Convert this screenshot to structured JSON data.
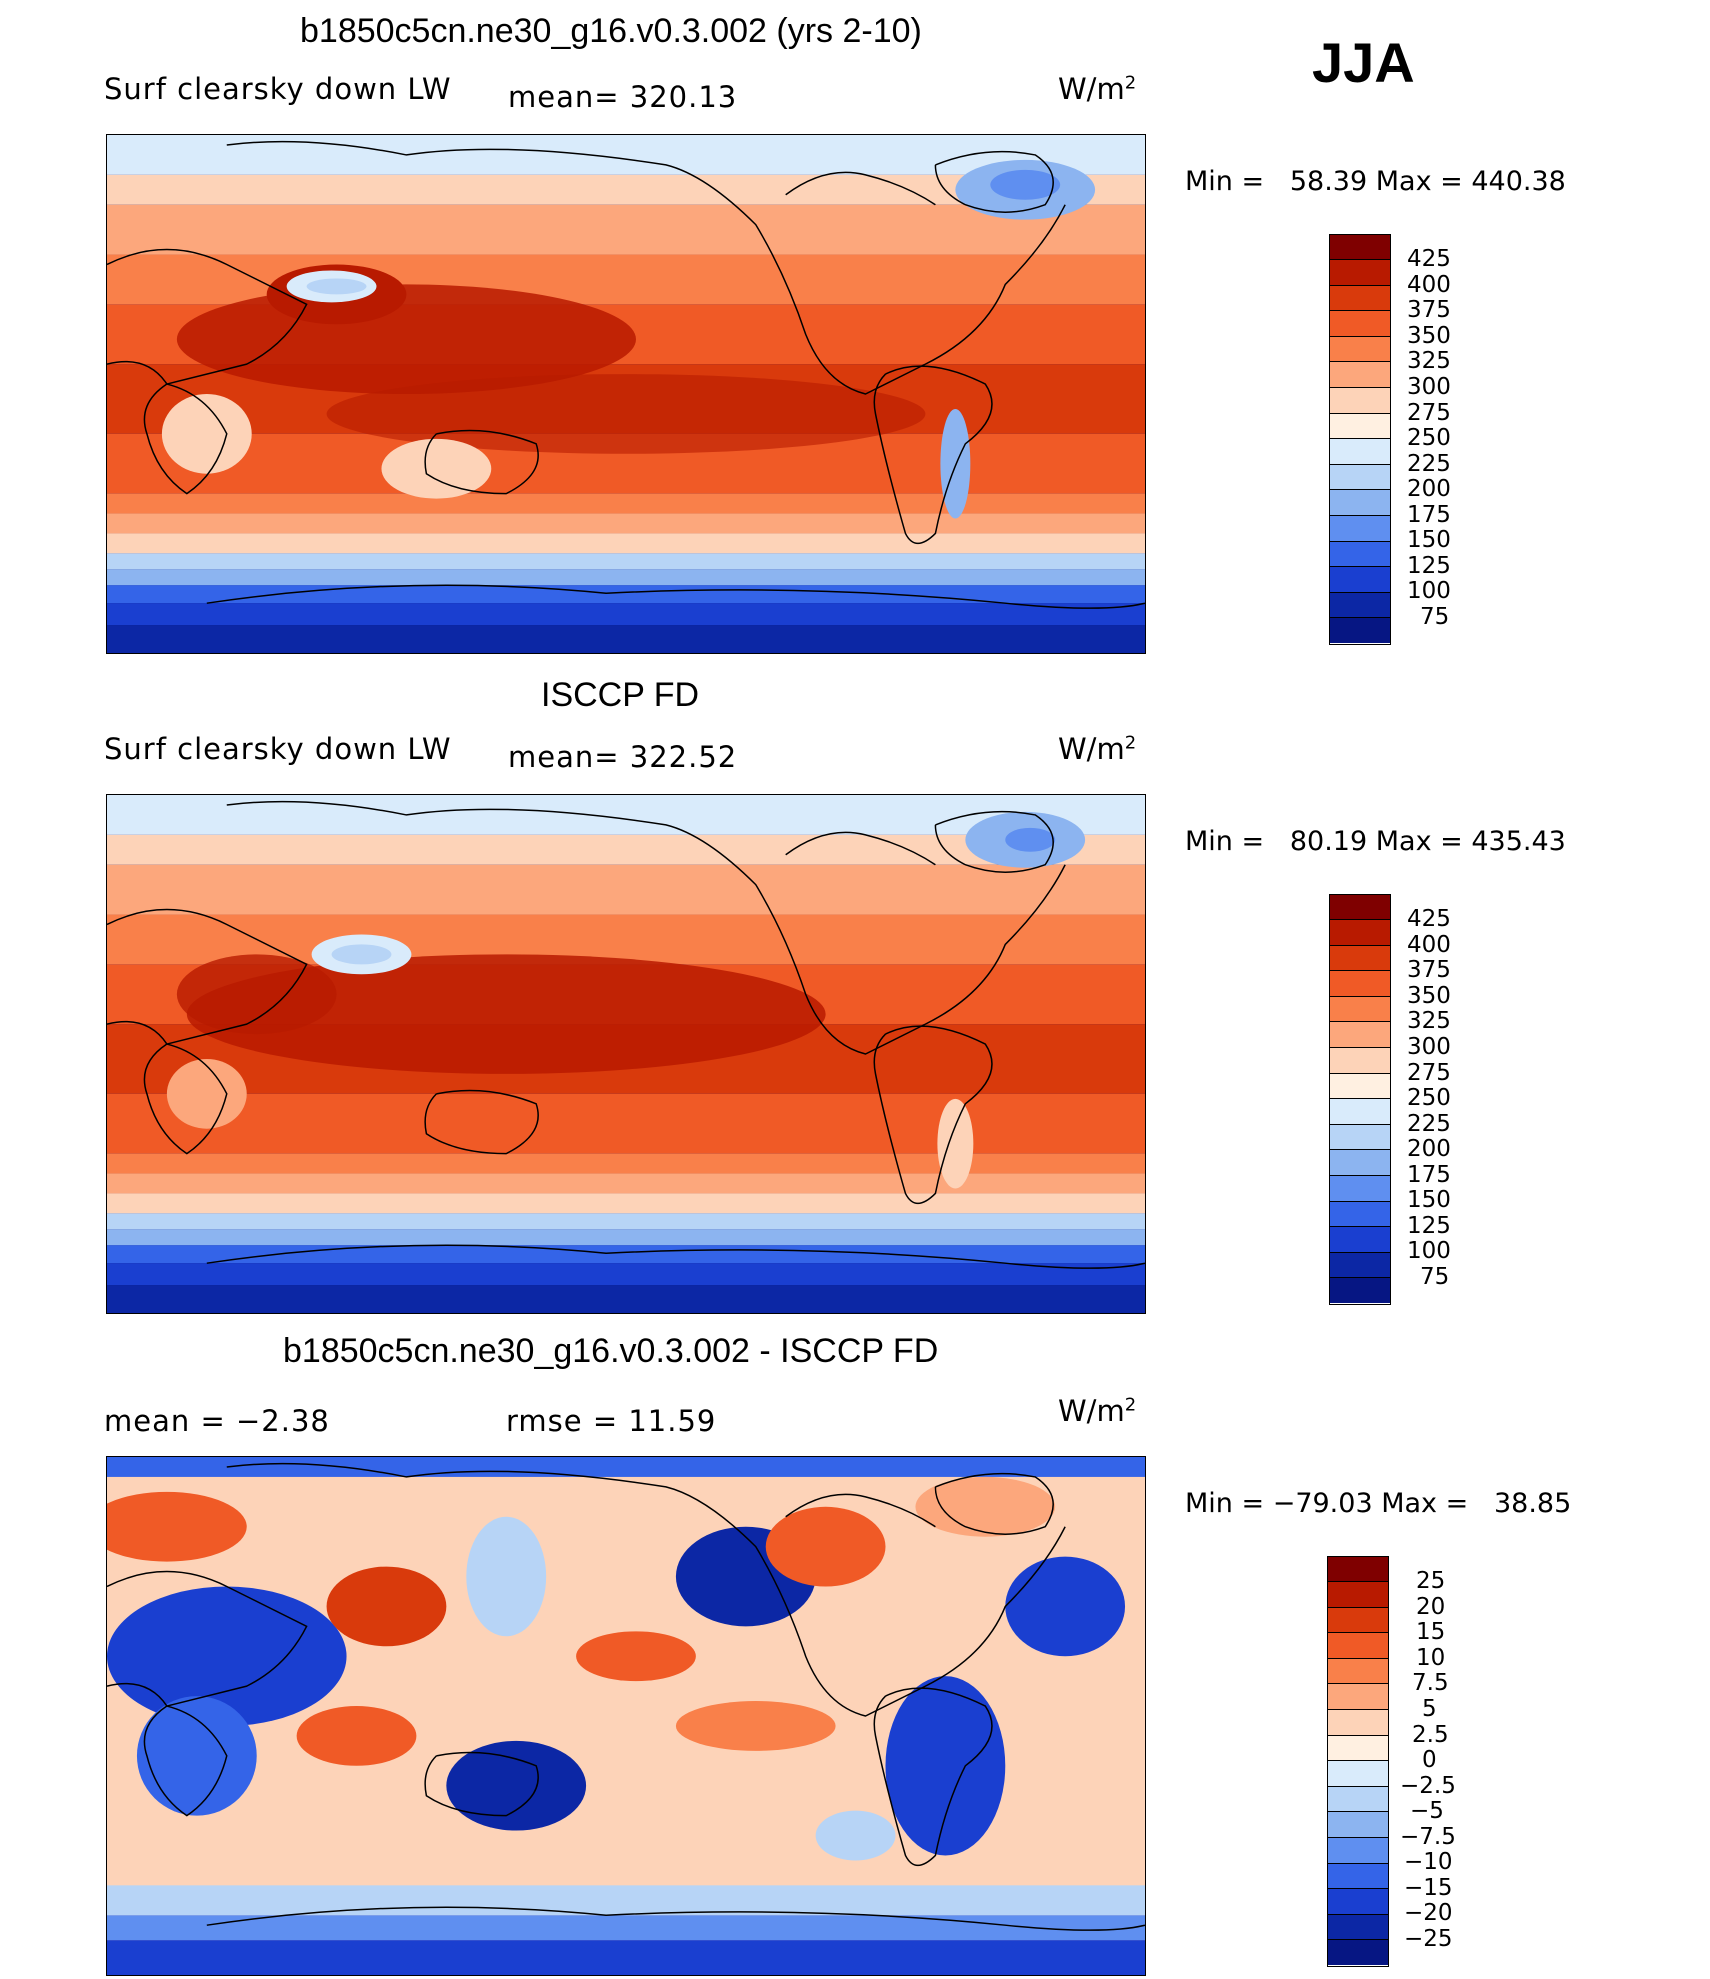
{
  "season": "JJA",
  "units_base": "W/m",
  "units_exp": "2",
  "panels": [
    {
      "id": "model",
      "title": "b1850c5cn.ne30_g16.v0.3.002 (yrs 2-10)",
      "variable": "Surf clearsky down LW",
      "stat1": "mean=  320.13",
      "stat2": "",
      "minmax": "Min =   58.39 Max = 440.38",
      "levels": [
        "425",
        "400",
        "375",
        "350",
        "325",
        "300",
        "275",
        "250",
        "225",
        "200",
        "175",
        "150",
        "125",
        "100",
        "75"
      ]
    },
    {
      "id": "obs",
      "title": "ISCCP FD",
      "variable": "Surf clearsky down LW",
      "stat1": "mean=  322.52",
      "stat2": "",
      "minmax": "Min =   80.19 Max = 435.43",
      "levels": [
        "425",
        "400",
        "375",
        "350",
        "325",
        "300",
        "275",
        "250",
        "225",
        "200",
        "175",
        "150",
        "125",
        "100",
        "75"
      ]
    },
    {
      "id": "diff",
      "title": "b1850c5cn.ne30_g16.v0.3.002 - ISCCP FD",
      "variable": "mean =   −2.38",
      "stat1": "rmse =   11.59",
      "stat2": "",
      "minmax": "Min = −79.03 Max =   38.85",
      "levels": [
        "25",
        "20",
        "15",
        "10",
        "7.5",
        "5",
        "2.5",
        "0",
        "−2.5",
        "−5",
        "−7.5",
        "−10",
        "−15",
        "−20",
        "−25"
      ]
    }
  ],
  "colors": {
    "abs_scale": [
      "#7f0000",
      "#b81a00",
      "#d93a0c",
      "#f05a26",
      "#f9804a",
      "#fca77c",
      "#fdd3b8",
      "#fff0e1",
      "#d9ebfb",
      "#b7d4f6",
      "#8cb4f0",
      "#5f8ff0",
      "#3464e8",
      "#1a3fd0",
      "#0c27a5",
      "#061683"
    ],
    "diff_scale": [
      "#7f0000",
      "#b81a00",
      "#d93a0c",
      "#f05a26",
      "#f9804a",
      "#fca77c",
      "#fdd3b8",
      "#fff0e1",
      "#d9ebfb",
      "#b7d4f6",
      "#8cb4f0",
      "#5f8ff0",
      "#3464e8",
      "#1a3fd0",
      "#0c27a5",
      "#061683"
    ]
  }
}
